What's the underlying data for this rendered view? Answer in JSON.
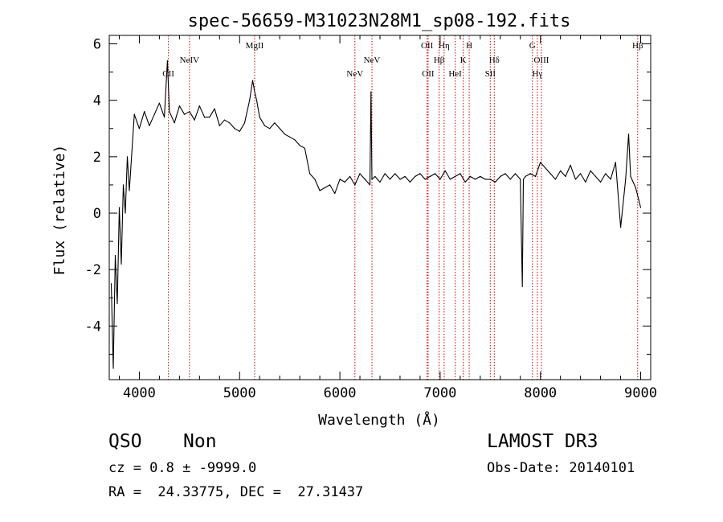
{
  "chart_data": {
    "type": "line",
    "title": "spec-56659-M31023N28M1_sp08-192.fits",
    "xlabel": "Wavelength (Å)",
    "ylabel": "Flux (relative)",
    "xlim": [
      3700,
      9100
    ],
    "ylim": [
      -5.9,
      6.3
    ],
    "xticks": [
      "4000",
      "5000",
      "6000",
      "7000",
      "8000",
      "9000"
    ],
    "yticks": [
      "-4",
      "-2",
      "0",
      "2",
      "4",
      "6"
    ],
    "grid": false,
    "series": [
      {
        "style": "solid black line",
        "x": [
          3720,
          3740,
          3760,
          3780,
          3800,
          3820,
          3840,
          3860,
          3880,
          3900,
          3950,
          4000,
          4050,
          4100,
          4150,
          4200,
          4250,
          4280,
          4300,
          4350,
          4400,
          4450,
          4500,
          4550,
          4600,
          4650,
          4700,
          4750,
          4800,
          4850,
          4900,
          4950,
          5000,
          5050,
          5100,
          5130,
          5150,
          5170,
          5200,
          5250,
          5300,
          5350,
          5400,
          5450,
          5500,
          5550,
          5600,
          5650,
          5700,
          5750,
          5800,
          5850,
          5900,
          5950,
          6000,
          6050,
          6100,
          6150,
          6200,
          6250,
          6300,
          6310,
          6320,
          6350,
          6400,
          6450,
          6500,
          6550,
          6600,
          6650,
          6700,
          6750,
          6800,
          6850,
          6900,
          6950,
          7000,
          7050,
          7100,
          7150,
          7200,
          7250,
          7300,
          7350,
          7400,
          7450,
          7500,
          7550,
          7600,
          7650,
          7700,
          7750,
          7800,
          7820,
          7830,
          7850,
          7900,
          7950,
          8000,
          8050,
          8100,
          8150,
          8200,
          8250,
          8300,
          8350,
          8400,
          8450,
          8500,
          8550,
          8600,
          8650,
          8700,
          8750,
          8800,
          8850,
          8880,
          8900,
          8950,
          9000
        ],
        "y": [
          -2.5,
          -5.5,
          -1.5,
          -3.2,
          0.2,
          -1.8,
          1.0,
          0.0,
          2.0,
          0.8,
          3.5,
          3.0,
          3.6,
          3.1,
          3.5,
          3.9,
          3.4,
          5.4,
          3.6,
          3.2,
          3.8,
          3.5,
          3.6,
          3.3,
          3.8,
          3.4,
          3.4,
          3.7,
          3.1,
          3.3,
          3.2,
          3.0,
          2.9,
          3.2,
          4.0,
          4.7,
          4.3,
          4.0,
          3.4,
          3.1,
          3.0,
          3.2,
          3.0,
          2.8,
          2.7,
          2.6,
          2.4,
          2.3,
          1.4,
          1.2,
          0.8,
          0.9,
          1.0,
          0.7,
          1.2,
          1.1,
          1.3,
          1.0,
          1.4,
          1.2,
          1.0,
          4.3,
          1.2,
          1.3,
          1.1,
          1.4,
          1.2,
          1.4,
          1.2,
          1.3,
          1.1,
          1.3,
          1.4,
          1.2,
          1.3,
          1.4,
          1.2,
          1.5,
          1.2,
          1.3,
          1.4,
          1.1,
          1.3,
          1.2,
          1.3,
          1.2,
          1.2,
          1.1,
          1.3,
          1.4,
          1.2,
          1.4,
          1.2,
          -2.6,
          1.2,
          1.3,
          1.4,
          1.3,
          1.8,
          1.6,
          1.4,
          1.2,
          1.5,
          1.3,
          1.7,
          1.2,
          1.4,
          1.1,
          1.5,
          1.3,
          1.1,
          1.4,
          1.2,
          1.8,
          -0.5,
          1.2,
          2.8,
          1.3,
          0.9,
          0.2
        ]
      }
    ],
    "lines": [
      {
        "label": "CII",
        "x": 4290,
        "label_row": 3
      },
      {
        "label": "NeIV",
        "x": 4500,
        "label_row": 2
      },
      {
        "label": "MgII",
        "x": 5150,
        "label_row": 0
      },
      {
        "label": "NeV",
        "x": 6150,
        "label_row": 3
      },
      {
        "label": "NeV",
        "x": 6320,
        "label_row": 2
      },
      {
        "label": "OII",
        "x": 6870,
        "label_row": 0
      },
      {
        "label": "OII",
        "x": 6880,
        "label_row": 3
      },
      {
        "label": "Hη",
        "x": 7040,
        "label_row": 0
      },
      {
        "label": "Hβ",
        "x": 6990,
        "label_row": 2
      },
      {
        "label": "HeI",
        "x": 7150,
        "label_row": 3
      },
      {
        "label": "K",
        "x": 7230,
        "label_row": 2
      },
      {
        "label": "H",
        "x": 7290,
        "label_row": 0
      },
      {
        "label": "Hδ",
        "x": 7540,
        "label_row": 2
      },
      {
        "label": "SII",
        "x": 7500,
        "label_row": 3
      },
      {
        "label": "G",
        "x": 7920,
        "label_row": 0
      },
      {
        "label": "OIII",
        "x": 8010,
        "label_row": 2
      },
      {
        "label": "Hγ",
        "x": 7970,
        "label_row": 3
      },
      {
        "label": "Hβ",
        "x": 8970,
        "label_row": 0
      }
    ]
  },
  "info": {
    "class": "QSO",
    "subclass": "Non",
    "cz": "cz = 0.8 ± -9999.0",
    "radec": "RA =  24.33775, DEC =  27.31437",
    "survey": "LAMOST DR3",
    "obsdate": "Obs-Date: 20140101"
  },
  "colors": {
    "spectrum": "#000000",
    "line_markers": "#cc0000"
  }
}
